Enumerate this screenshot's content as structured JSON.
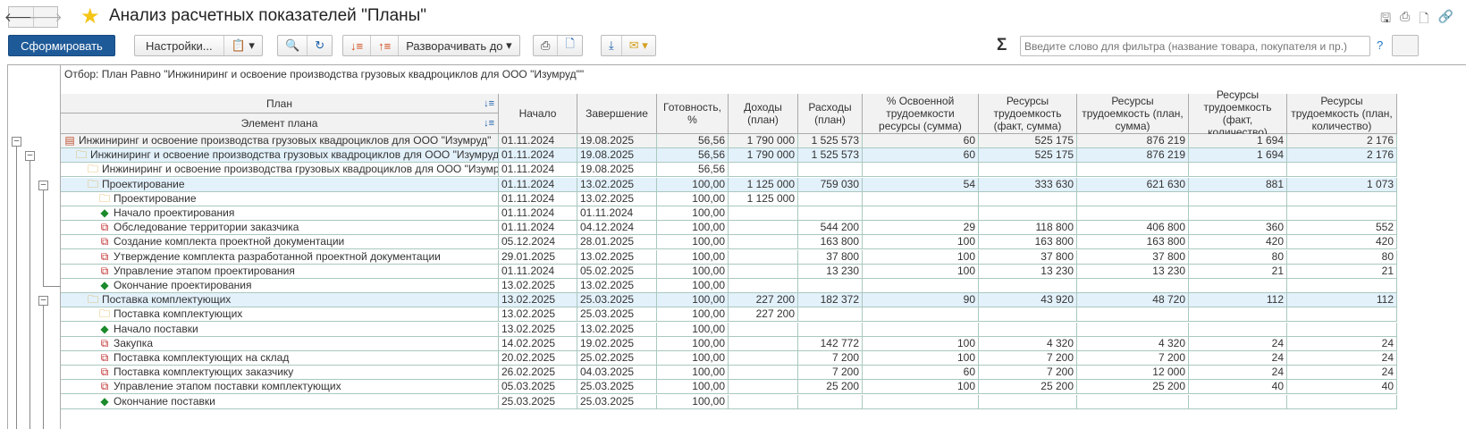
{
  "window": {
    "title": "Анализ расчетных показателей \"Планы\"",
    "back_icon": "arrow-left-icon",
    "forward_icon": "arrow-right-icon",
    "favorite_icon": "star-icon"
  },
  "toolbar": {
    "generate": "Сформировать",
    "settings": "Настройки...",
    "expand_to": "Разворачивать до",
    "filter_placeholder": "Введите слово для фильтра (название товара, покупателя и пр.)",
    "help": "?",
    "sigma": "Σ"
  },
  "report": {
    "filter_text": "Отбор: План Равно \"Инжиниринг и освоение производства грузовых квадроциклов для ООО \"Изумруд\"\"",
    "headers": {
      "plan": "План",
      "element": "Элемент плана",
      "start": "Начало",
      "end": "Завершение",
      "ready": "Готовность, %",
      "income": "Доходы (план)",
      "expense": "Расходы (план)",
      "pct": "% Освоенной трудоемкости ресурсы (сумма)",
      "rfs": "Ресурсы трудоемкость (факт, сумма)",
      "rps": "Ресурсы трудоемкость (план, сумма)",
      "rfq": "Ресурсы трудоемкость (факт, количество)",
      "rpq": "Ресурсы трудоемкость (план, количество)"
    },
    "rows": [
      {
        "name": "Инжиниринг и освоение производства грузовых квадроциклов для ООО \"Изумруд\"",
        "level": 0,
        "icon": "plan",
        "style": "total",
        "v": [
          "01.11.2024",
          "19.08.2025",
          "56,56",
          "1 790 000",
          "1 525 573",
          "60",
          "525 175",
          "876 219",
          "1 694",
          "2 176"
        ]
      },
      {
        "name": "Инжиниринг и освоение производства грузовых квадроциклов для ООО \"Изумруд\"",
        "level": 1,
        "icon": "folder",
        "style": "group",
        "v": [
          "01.11.2024",
          "19.08.2025",
          "56,56",
          "1 790 000",
          "1 525 573",
          "60",
          "525 175",
          "876 219",
          "1 694",
          "2 176"
        ]
      },
      {
        "name": "Инжиниринг и освоение производства грузовых квадроциклов для ООО \"Изумруд\"",
        "level": 2,
        "icon": "folder",
        "style": "",
        "v": [
          "01.11.2024",
          "19.08.2025",
          "56,56",
          "",
          "",
          "",
          "",
          "",
          "",
          ""
        ]
      },
      {
        "name": "Проектирование",
        "level": 2,
        "icon": "folder",
        "style": "group",
        "v": [
          "01.11.2024",
          "13.02.2025",
          "100,00",
          "1 125 000",
          "759 030",
          "54",
          "333 630",
          "621 630",
          "881",
          "1 073"
        ]
      },
      {
        "name": "Проектирование",
        "level": 3,
        "icon": "folder",
        "style": "",
        "v": [
          "01.11.2024",
          "13.02.2025",
          "100,00",
          "1 125 000",
          "",
          "",
          "",
          "",
          "",
          ""
        ]
      },
      {
        "name": "Начало проектирования",
        "level": 3,
        "icon": "milestone",
        "style": "",
        "v": [
          "01.11.2024",
          "01.11.2024",
          "100,00",
          "",
          "",
          "",
          "",
          "",
          "",
          ""
        ]
      },
      {
        "name": "Обследование территории заказчика",
        "level": 3,
        "icon": "task",
        "style": "",
        "v": [
          "01.11.2024",
          "04.12.2024",
          "100,00",
          "",
          "544 200",
          "29",
          "118 800",
          "406 800",
          "360",
          "552"
        ]
      },
      {
        "name": "Создание комплекта проектной документации",
        "level": 3,
        "icon": "task",
        "style": "",
        "v": [
          "05.12.2024",
          "28.01.2025",
          "100,00",
          "",
          "163 800",
          "100",
          "163 800",
          "163 800",
          "420",
          "420"
        ]
      },
      {
        "name": "Утверждение комплекта разработанной проектной документации",
        "level": 3,
        "icon": "task",
        "style": "",
        "v": [
          "29.01.2025",
          "13.02.2025",
          "100,00",
          "",
          "37 800",
          "100",
          "37 800",
          "37 800",
          "80",
          "80"
        ]
      },
      {
        "name": "Управление этапом проектирования",
        "level": 3,
        "icon": "task",
        "style": "",
        "v": [
          "01.11.2024",
          "05.02.2025",
          "100,00",
          "",
          "13 230",
          "100",
          "13 230",
          "13 230",
          "21",
          "21"
        ]
      },
      {
        "name": "Окончание проектирования",
        "level": 3,
        "icon": "milestone",
        "style": "",
        "v": [
          "13.02.2025",
          "13.02.2025",
          "100,00",
          "",
          "",
          "",
          "",
          "",
          "",
          ""
        ]
      },
      {
        "name": "Поставка комплектующих",
        "level": 2,
        "icon": "folder",
        "style": "group",
        "v": [
          "13.02.2025",
          "25.03.2025",
          "100,00",
          "227 200",
          "182 372",
          "90",
          "43 920",
          "48 720",
          "112",
          "112"
        ]
      },
      {
        "name": "Поставка комплектующих",
        "level": 3,
        "icon": "folder",
        "style": "",
        "v": [
          "13.02.2025",
          "25.03.2025",
          "100,00",
          "227 200",
          "",
          "",
          "",
          "",
          "",
          ""
        ]
      },
      {
        "name": "Начало поставки",
        "level": 3,
        "icon": "milestone",
        "style": "",
        "v": [
          "13.02.2025",
          "13.02.2025",
          "100,00",
          "",
          "",
          "",
          "",
          "",
          "",
          ""
        ]
      },
      {
        "name": "Закупка",
        "level": 3,
        "icon": "task",
        "style": "",
        "v": [
          "14.02.2025",
          "19.02.2025",
          "100,00",
          "",
          "142 772",
          "100",
          "4 320",
          "4 320",
          "24",
          "24"
        ]
      },
      {
        "name": "Поставка комплектующих на склад",
        "level": 3,
        "icon": "task",
        "style": "",
        "v": [
          "20.02.2025",
          "25.02.2025",
          "100,00",
          "",
          "7 200",
          "100",
          "7 200",
          "7 200",
          "24",
          "24"
        ]
      },
      {
        "name": "Поставка комплектующих заказчику",
        "level": 3,
        "icon": "task",
        "style": "",
        "v": [
          "26.02.2025",
          "04.03.2025",
          "100,00",
          "",
          "7 200",
          "60",
          "7 200",
          "12 000",
          "24",
          "24"
        ]
      },
      {
        "name": "Управление этапом поставки комплектующих",
        "level": 3,
        "icon": "task",
        "style": "",
        "v": [
          "05.03.2025",
          "25.03.2025",
          "100,00",
          "",
          "25 200",
          "100",
          "25 200",
          "25 200",
          "40",
          "40"
        ]
      },
      {
        "name": "Окончание поставки",
        "level": 3,
        "icon": "milestone",
        "style": "",
        "v": [
          "25.03.2025",
          "25.03.2025",
          "100,00",
          "",
          "",
          "",
          "",
          "",
          "",
          ""
        ]
      }
    ]
  },
  "colors": {
    "primary": "#1f5a98",
    "group_row": "#e3f1fb",
    "total_row": "#f2f2f2",
    "grid": "#a9c8bf"
  }
}
